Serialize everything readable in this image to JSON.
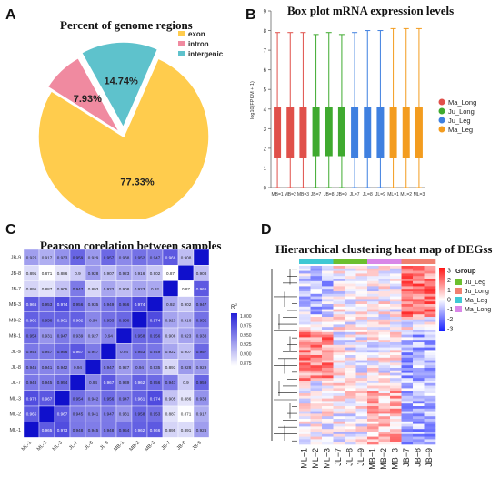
{
  "panels": {
    "A": {
      "label": "A",
      "chart_data": {
        "type": "pie",
        "title": "Percent of genome regions",
        "slices": [
          {
            "name": "exon",
            "value": 77.33,
            "label": "77.33%",
            "color": "#FFCC4D"
          },
          {
            "name": "intron",
            "value": 7.93,
            "label": "7.93%",
            "color": "#F08AA0"
          },
          {
            "name": "intergenic",
            "value": 14.74,
            "label": "14.74%",
            "color": "#5EC2CC"
          }
        ],
        "legend": [
          "exon",
          "intron",
          "intergenic"
        ],
        "legend_position": "top-right"
      }
    },
    "B": {
      "label": "B",
      "chart_data": {
        "type": "box",
        "title": "Box plot mRNA expression levels",
        "ylabel": "log10(FPKM + 1)",
        "ylim": [
          0,
          9
        ],
        "yticks": [
          "0",
          "1",
          "2",
          "3",
          "4",
          "5",
          "6",
          "7",
          "8",
          "9"
        ],
        "categories": [
          "MB=1",
          "MB=2",
          "MB=3",
          "JB=7",
          "JB=8",
          "JB=9",
          "JL=7",
          "JL=8",
          "JL=9",
          "ML=1",
          "ML=2",
          "ML=3"
        ],
        "groups": [
          0,
          0,
          0,
          1,
          1,
          1,
          2,
          2,
          2,
          3,
          3,
          3
        ],
        "series": [
          {
            "name": "Ma_Long",
            "color": "#E0504A"
          },
          {
            "name": "Ju_Long",
            "color": "#3FAA2F"
          },
          {
            "name": "Ju_Leg",
            "color": "#3F80E0"
          },
          {
            "name": "Ma_Leg",
            "color": "#F39C1F"
          }
        ],
        "boxes": [
          {
            "min": 0,
            "q1": 1.5,
            "q3": 4.1,
            "max": 7.9
          },
          {
            "min": 0,
            "q1": 1.5,
            "q3": 4.1,
            "max": 7.9
          },
          {
            "min": 0,
            "q1": 1.5,
            "q3": 4.1,
            "max": 7.9
          },
          {
            "min": 0,
            "q1": 1.6,
            "q3": 4.1,
            "max": 7.8
          },
          {
            "min": 0,
            "q1": 1.6,
            "q3": 4.1,
            "max": 7.9
          },
          {
            "min": 0,
            "q1": 1.6,
            "q3": 4.1,
            "max": 7.8
          },
          {
            "min": 0,
            "q1": 1.5,
            "q3": 4.1,
            "max": 7.9
          },
          {
            "min": 0,
            "q1": 1.5,
            "q3": 4.1,
            "max": 8.0
          },
          {
            "min": 0,
            "q1": 1.5,
            "q3": 4.1,
            "max": 8.0
          },
          {
            "min": 0,
            "q1": 1.5,
            "q3": 4.1,
            "max": 8.1
          },
          {
            "min": 0,
            "q1": 1.5,
            "q3": 4.1,
            "max": 8.1
          },
          {
            "min": 0,
            "q1": 1.5,
            "q3": 4.1,
            "max": 8.1
          }
        ],
        "legend_position": "right"
      }
    },
    "C": {
      "label": "C",
      "chart_data": {
        "type": "heatmap",
        "title": "Pearson corelation between samples",
        "rows": [
          "JB-9",
          "JB-8",
          "JB-7",
          "MB-3",
          "MB-2",
          "MB-1",
          "JL-9",
          "JL-8",
          "JL-7",
          "ML-3",
          "ML-2",
          "ML-1"
        ],
        "columns": [
          "ML-1",
          "ML-2",
          "ML-3",
          "JL-7",
          "JL-8",
          "JL-9",
          "MB-1",
          "MB-2",
          "MB-3",
          "JB-7",
          "JB-8",
          "JB-9"
        ],
        "values": [
          [
            "0.926",
            "0.917",
            "0.933",
            "0.959",
            "0.929",
            "0.957",
            "0.938",
            "0.952",
            "0.947",
            "0.966",
            "0.908",
            ""
          ],
          [
            "0.891",
            "0.871",
            "0.886",
            "0.9",
            "0.928",
            "0.907",
            "0.923",
            "0.916",
            "0.902",
            "0.87",
            "",
            "0.908"
          ],
          [
            "0.895",
            "0.887",
            "0.905",
            "0.947",
            "0.893",
            "0.922",
            "0.908",
            "0.923",
            "0.92",
            "",
            "0.87",
            "0.966"
          ],
          [
            "0.966",
            "0.953",
            "0.974",
            "0.956",
            "0.935",
            "0.949",
            "0.956",
            "0.974",
            "",
            "0.92",
            "0.902",
            "0.947"
          ],
          [
            "0.962",
            "0.958",
            "0.961",
            "0.962",
            "0.94",
            "0.953",
            "0.958",
            "",
            "0.974",
            "0.923",
            "0.916",
            "0.952"
          ],
          [
            "0.954",
            "0.931",
            "0.947",
            "0.939",
            "0.927",
            "0.94",
            "",
            "0.958",
            "0.956",
            "0.908",
            "0.923",
            "0.938"
          ],
          [
            "0.948",
            "0.947",
            "0.956",
            "0.967",
            "0.947",
            "",
            "0.94",
            "0.953",
            "0.949",
            "0.922",
            "0.907",
            "0.957"
          ],
          [
            "0.945",
            "0.941",
            "0.942",
            "0.94",
            "",
            "0.947",
            "0.927",
            "0.94",
            "0.935",
            "0.893",
            "0.928",
            "0.929"
          ],
          [
            "0.948",
            "0.945",
            "0.954",
            "",
            "0.94",
            "0.967",
            "0.939",
            "0.962",
            "0.956",
            "0.947",
            "0.9",
            "0.959"
          ],
          [
            "0.973",
            "0.967",
            "",
            "0.954",
            "0.942",
            "0.956",
            "0.947",
            "0.961",
            "0.974",
            "0.905",
            "0.886",
            "0.933"
          ],
          [
            "0.965",
            "",
            "0.967",
            "0.945",
            "0.941",
            "0.947",
            "0.931",
            "0.958",
            "0.953",
            "0.887",
            "0.871",
            "0.917"
          ],
          [
            "",
            "0.965",
            "0.973",
            "0.948",
            "0.945",
            "0.948",
            "0.954",
            "0.962",
            "0.966",
            "0.895",
            "0.891",
            "0.926"
          ]
        ],
        "colorbar": {
          "title": "R",
          "title_sup": "2",
          "ticks": [
            "1.000",
            "0.975",
            "0.950",
            "0.925",
            "0.900",
            "0.875"
          ],
          "range": [
            0.87,
            1.0
          ]
        }
      }
    },
    "D": {
      "label": "D",
      "chart_data": {
        "type": "heatmap",
        "title": "Hierarchical clustering heat map of DEGss",
        "columns": [
          "ML−1",
          "ML−2",
          "ML−3",
          "JL−7",
          "JL−8",
          "JL−9",
          "MB−1",
          "MB−2",
          "MB−3",
          "JB−7",
          "JB−8",
          "JB−9"
        ],
        "column_groups": [
          "Ma_Leg",
          "Ma_Leg",
          "Ma_Leg",
          "Ju_Leg",
          "Ju_Leg",
          "Ju_Leg",
          "Ma_Long",
          "Ma_Long",
          "Ma_Long",
          "Ju_Long",
          "Ju_Long",
          "Ju_Long"
        ],
        "group_legend_title": "Group",
        "group_legend": [
          {
            "name": "Ju_Leg",
            "color": "#6CBF2E"
          },
          {
            "name": "Ju_Long",
            "color": "#F08070"
          },
          {
            "name": "Ma_Leg",
            "color": "#3FC8D4"
          },
          {
            "name": "Ma_Long",
            "color": "#D986E8"
          }
        ],
        "scale_ticks": [
          "3",
          "2",
          "1",
          "0",
          "-1",
          "-2",
          "-3"
        ],
        "range": [
          -3,
          3
        ]
      }
    }
  }
}
